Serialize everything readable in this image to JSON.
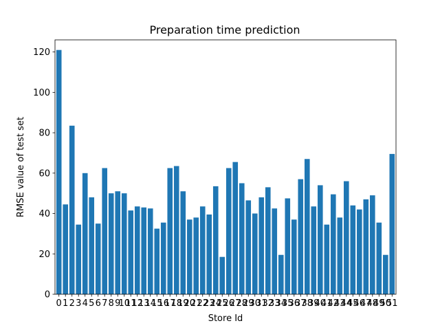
{
  "chart_data": {
    "type": "bar",
    "title": "Preparation time prediction",
    "xlabel": "Store Id",
    "ylabel": "RMSE value of test set",
    "ylim": [
      0,
      126
    ],
    "yticks": [
      0,
      20,
      40,
      60,
      80,
      100,
      120
    ],
    "color": "#1f77b4",
    "grid": false,
    "categories": [
      "0",
      "1",
      "2",
      "3",
      "4",
      "5",
      "6",
      "7",
      "8",
      "9",
      "10",
      "11",
      "12",
      "13",
      "14",
      "15",
      "16",
      "17",
      "18",
      "19",
      "20",
      "21",
      "22",
      "23",
      "24",
      "25",
      "26",
      "27",
      "28",
      "29",
      "30",
      "31",
      "32",
      "33",
      "34",
      "35",
      "36",
      "37",
      "38",
      "39",
      "40",
      "41",
      "42",
      "43",
      "44",
      "45",
      "46",
      "47",
      "48",
      "49",
      "50",
      "51"
    ],
    "values": [
      121,
      44.5,
      83.5,
      34.5,
      60,
      48,
      35,
      62.5,
      50,
      51,
      50,
      41.5,
      43.5,
      43,
      42.5,
      32.5,
      35.5,
      62.5,
      63.5,
      51,
      37,
      38,
      43.5,
      39.5,
      53.5,
      18.5,
      62.5,
      65.5,
      55,
      46.5,
      40,
      48,
      53,
      42.5,
      19.5,
      47.5,
      37,
      57,
      67,
      43.5,
      54,
      34.5,
      49.5,
      38,
      56,
      44,
      42,
      47,
      49,
      35.5,
      19.5,
      69.5
    ]
  }
}
